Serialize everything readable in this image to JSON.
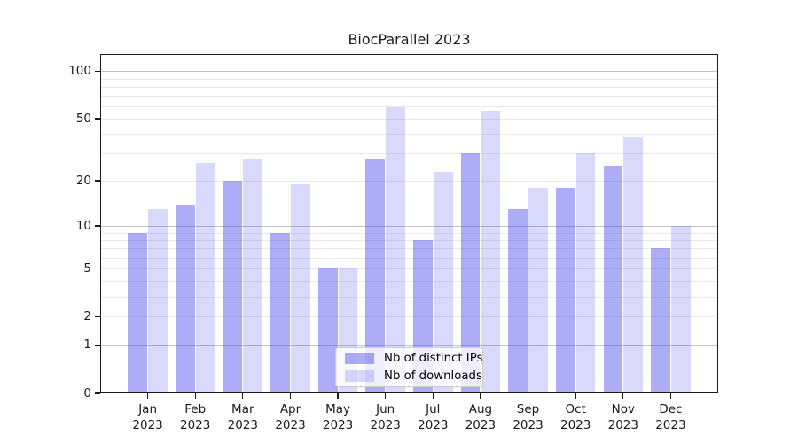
{
  "page": {
    "background": "#ffffff"
  },
  "chart_data": {
    "type": "bar",
    "title": "BiocParallel 2023",
    "categories": [
      "Jan 2023",
      "Feb 2023",
      "Mar 2023",
      "Apr 2023",
      "May 2023",
      "Jun 2023",
      "Jul 2023",
      "Aug 2023",
      "Sep 2023",
      "Oct 2023",
      "Nov 2023",
      "Dec 2023"
    ],
    "series": [
      {
        "name": "Nb of distinct IPs",
        "color": "#5252ee",
        "alpha": 0.48,
        "values": [
          9,
          14,
          20,
          9,
          5,
          28,
          8,
          30,
          13,
          18,
          25,
          7
        ]
      },
      {
        "name": "Nb of downloads",
        "color": "#5252ee",
        "alpha": 0.22,
        "values": [
          13,
          26,
          28,
          19,
          5,
          59,
          23,
          56,
          18,
          30,
          38,
          10
        ]
      }
    ],
    "xlabel": "",
    "ylabel": "",
    "yscale": "log1p",
    "ylim": [
      0,
      128
    ],
    "y_tick_values": [
      0,
      1,
      2,
      5,
      10,
      20,
      50,
      100
    ],
    "y_major_gridlines": [
      1,
      10,
      100
    ],
    "y_minor_gridlines": [
      2,
      3,
      4,
      5,
      6,
      7,
      8,
      9,
      20,
      30,
      40,
      50,
      60,
      70,
      80,
      90
    ],
    "grid": true,
    "legend_position": "lower center",
    "colors": {
      "major_grid": "#c3c3c3",
      "minor_grid": "#eaeaea",
      "axis": "#1b1b1b",
      "title_text": "#1a1a1a"
    }
  }
}
